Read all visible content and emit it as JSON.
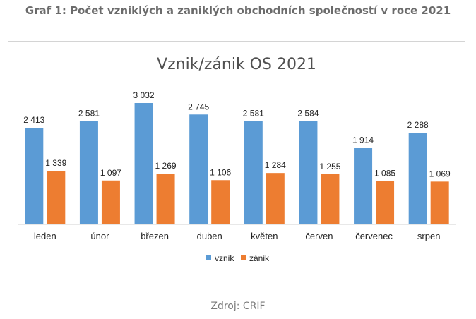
{
  "page": {
    "title": "Graf 1: Počet vzniklých a zaniklých obchodních společností v roce 2021",
    "source": "Zdroj: CRIF"
  },
  "chart_data": {
    "type": "bar",
    "title": "Vznik/zánik OS 2021",
    "categories": [
      "leden",
      "únor",
      "březen",
      "duben",
      "květen",
      "červen",
      "červenec",
      "srpen"
    ],
    "series": [
      {
        "name": "vznik",
        "color": "#5b9bd5",
        "values": [
          2413,
          2581,
          3032,
          2745,
          2581,
          2584,
          1914,
          2288
        ],
        "labels": [
          "2 413",
          "2 581",
          "3 032",
          "2 745",
          "2 581",
          "2 584",
          "1 914",
          "2 288"
        ]
      },
      {
        "name": "zánik",
        "color": "#ed7d31",
        "values": [
          1339,
          1097,
          1269,
          1106,
          1284,
          1255,
          1085,
          1069
        ],
        "labels": [
          "1 339",
          "1 097",
          "1 269",
          "1 106",
          "1 284",
          "1 255",
          "1 085",
          "1 069"
        ]
      }
    ],
    "ylim": [
      0,
      3032
    ],
    "legend": "bottom",
    "grid": false,
    "xlabel": "",
    "ylabel": ""
  }
}
